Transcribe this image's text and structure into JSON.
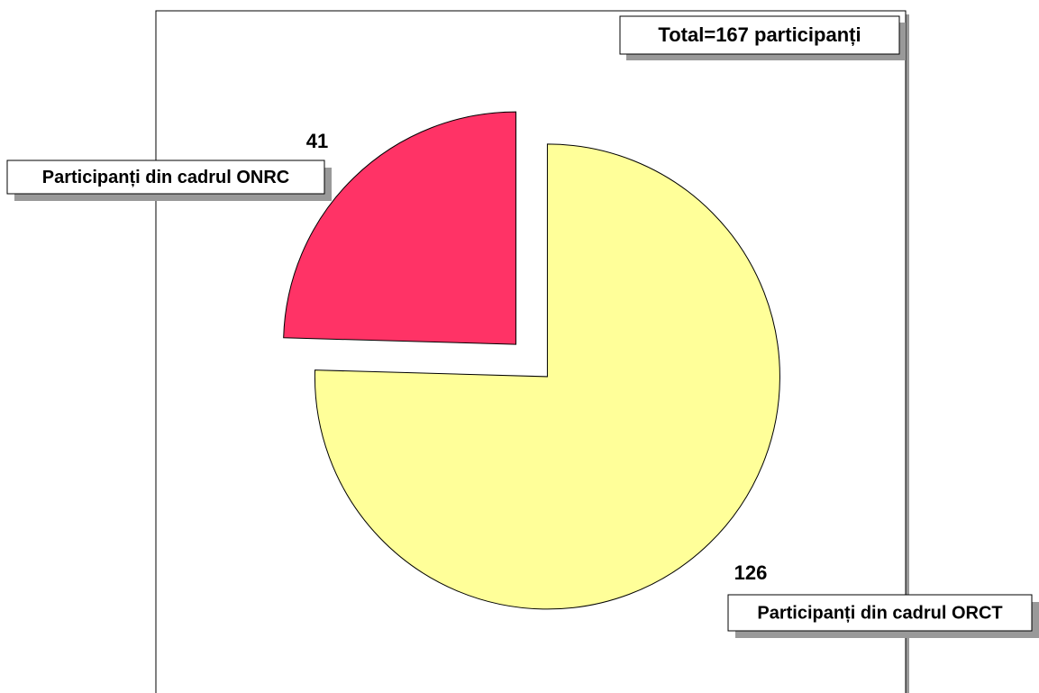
{
  "chart_data": {
    "type": "pie",
    "annotation": "Total=167 participanți",
    "categories": [
      "Participanți din cadrul ORCT",
      "Participanți din cadrul ONRC"
    ],
    "values": [
      126,
      41
    ],
    "colors": [
      "#ffff99",
      "#ff3366"
    ]
  }
}
